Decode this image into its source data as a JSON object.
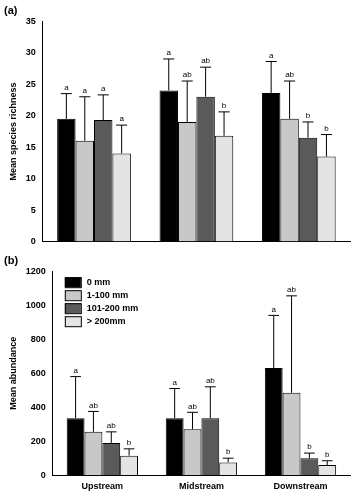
{
  "chart_data": [
    {
      "type": "bar",
      "title": "(a)",
      "y_label": "Mean species richness",
      "categories": [
        "Upstream",
        "Midstream",
        "Downstream"
      ],
      "tick_labels": "y",
      "grid": false,
      "ylim": [
        0,
        35
      ],
      "yticks": [
        0,
        5,
        10,
        15,
        20,
        25,
        30,
        35
      ],
      "series": [
        {
          "name": "0 mm",
          "color": "#000000",
          "values": [
            19.5,
            24,
            23.6
          ],
          "errors": [
            4,
            5,
            5
          ],
          "letters": [
            "a",
            "a",
            "a"
          ]
        },
        {
          "name": "1-100 mm",
          "color": "#c8c8c8",
          "values": [
            16,
            19,
            19.5
          ],
          "errors": [
            7,
            6.5,
            6
          ],
          "letters": [
            "a",
            "ab",
            "ab"
          ]
        },
        {
          "name": "101-200 mm",
          "color": "#5a5a5a",
          "values": [
            19.3,
            23,
            16.5
          ],
          "errors": [
            4,
            4.7,
            2.5
          ],
          "letters": [
            "a",
            "ab",
            "b"
          ]
        },
        {
          "name": "> 200mm",
          "color": "#e4e4e4",
          "values": [
            14,
            16.8,
            13.5
          ],
          "errors": [
            4.5,
            3.8,
            3.5
          ],
          "letters": [
            "a",
            "b",
            "b"
          ]
        }
      ]
    },
    {
      "type": "bar",
      "title": "(b)",
      "y_label": "Mean abundance",
      "categories": [
        "Upstream",
        "Midstream",
        "Downstream"
      ],
      "grid": false,
      "legend": "upper left",
      "ylim": [
        0,
        1200
      ],
      "yticks": [
        0,
        200,
        400,
        600,
        800,
        1000,
        1200
      ],
      "series": [
        {
          "name": "0 mm",
          "color": "#000000",
          "values": [
            335,
            335,
            630
          ],
          "errors": [
            245,
            175,
            310
          ],
          "letters": [
            "a",
            "a",
            "a"
          ]
        },
        {
          "name": "1-100 mm",
          "color": "#c8c8c8",
          "values": [
            255,
            270,
            485
          ],
          "errors": [
            120,
            100,
            570
          ],
          "letters": [
            "ab",
            "ab",
            "ab"
          ]
        },
        {
          "name": "101-200 mm",
          "color": "#5a5a5a",
          "values": [
            190,
            335,
            100
          ],
          "errors": [
            65,
            185,
            30
          ],
          "letters": [
            "ab",
            "ab",
            "b"
          ]
        },
        {
          "name": "> 200mm",
          "color": "#e4e4e4",
          "values": [
            115,
            75,
            60
          ],
          "errors": [
            40,
            25,
            25
          ],
          "letters": [
            "b",
            "b",
            "b"
          ]
        }
      ]
    }
  ]
}
